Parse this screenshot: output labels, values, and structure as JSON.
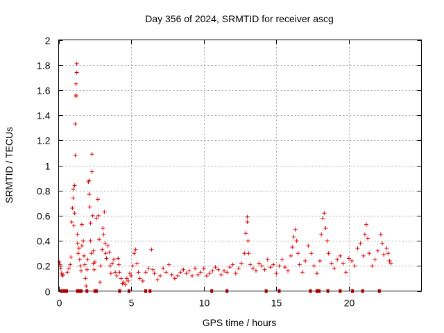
{
  "chart_data": {
    "type": "scatter",
    "title": "Day 356 of 2024, SRMTID for receiver ascg",
    "xlabel": "GPS time / hours",
    "ylabel": "SRMTID / TECUs",
    "xlim": [
      0,
      25
    ],
    "ylim": [
      0,
      2
    ],
    "x_ticks": [
      0,
      5,
      10,
      15,
      20
    ],
    "x_tick_labels": [
      "0",
      "5",
      "10",
      "15",
      "20"
    ],
    "y_ticks": [
      0,
      0.2,
      0.4,
      0.6,
      0.8,
      1,
      1.2,
      1.4,
      1.6,
      1.8,
      2
    ],
    "y_tick_labels": [
      "0",
      "0.2",
      "0.4",
      "0.6",
      "0.8",
      "1",
      "1.2",
      "1.4",
      "1.6",
      "1.8",
      "2"
    ],
    "grid": true,
    "marker": "plus",
    "color": "#e00000",
    "series": [
      {
        "name": "SRMTID",
        "points": [
          [
            0.05,
            0.23
          ],
          [
            0.1,
            0.21
          ],
          [
            0.15,
            0.18
          ],
          [
            0.2,
            0.14
          ],
          [
            0.25,
            0.12
          ],
          [
            0.3,
            0.13
          ],
          [
            0.6,
            0.15
          ],
          [
            0.7,
            0.18
          ],
          [
            0.8,
            0.21
          ],
          [
            0.85,
            0.27
          ],
          [
            0.9,
            0.55
          ],
          [
            0.95,
            0.66
          ],
          [
            1.0,
            0.74
          ],
          [
            1.0,
            0.81
          ],
          [
            1.05,
            0.52
          ],
          [
            1.1,
            0.62
          ],
          [
            1.1,
            0.84
          ],
          [
            1.15,
            1.08
          ],
          [
            1.15,
            1.33
          ],
          [
            1.2,
            1.55
          ],
          [
            1.2,
            1.56
          ],
          [
            1.2,
            1.65
          ],
          [
            1.25,
            1.74
          ],
          [
            1.25,
            1.81
          ],
          [
            1.3,
            0.45
          ],
          [
            1.3,
            0.38
          ],
          [
            1.35,
            0.3
          ],
          [
            1.4,
            0.34
          ],
          [
            1.45,
            0.25
          ],
          [
            1.5,
            0.2
          ],
          [
            1.55,
            0.16
          ],
          [
            1.6,
            0.36
          ],
          [
            1.6,
            0.53
          ],
          [
            1.7,
            0.4
          ],
          [
            1.75,
            0.28
          ],
          [
            1.8,
            0.21
          ],
          [
            1.85,
            0.1
          ],
          [
            1.9,
            0.04
          ],
          [
            1.95,
            0.17
          ],
          [
            2.0,
            0.25
          ],
          [
            2.05,
            0.87
          ],
          [
            2.1,
            0.88
          ],
          [
            2.1,
            0.77
          ],
          [
            2.15,
            0.67
          ],
          [
            2.2,
            0.54
          ],
          [
            2.2,
            0.4
          ],
          [
            2.25,
            0.3
          ],
          [
            2.3,
            0.95
          ],
          [
            2.3,
            1.09
          ],
          [
            2.35,
            0.6
          ],
          [
            2.4,
            0.32
          ],
          [
            2.4,
            0.22
          ],
          [
            2.45,
            0.17
          ],
          [
            2.5,
            0.23
          ],
          [
            2.6,
            0.58
          ],
          [
            2.7,
            0.73
          ],
          [
            2.75,
            0.6
          ],
          [
            2.8,
            0.41
          ],
          [
            2.85,
            0.07
          ],
          [
            2.9,
            0.2
          ],
          [
            3.0,
            0.33
          ],
          [
            3.05,
            0.5
          ],
          [
            3.1,
            0.45
          ],
          [
            3.15,
            0.63
          ],
          [
            3.2,
            0.38
          ],
          [
            3.25,
            0.3
          ],
          [
            3.3,
            0.26
          ],
          [
            3.4,
            0.36
          ],
          [
            3.5,
            0.31
          ],
          [
            3.55,
            0.2
          ],
          [
            3.6,
            0.14
          ],
          [
            3.7,
            0.22
          ],
          [
            3.8,
            0.25
          ],
          [
            3.9,
            0.15
          ],
          [
            4.0,
            0.12
          ],
          [
            4.1,
            0.26
          ],
          [
            4.15,
            0.21
          ],
          [
            4.2,
            0.15
          ],
          [
            4.3,
            0.1
          ],
          [
            4.4,
            0.06
          ],
          [
            4.5,
            0.07
          ],
          [
            4.6,
            0.05
          ],
          [
            4.7,
            0.1
          ],
          [
            4.8,
            0.08
          ],
          [
            4.9,
            0.14
          ],
          [
            5.0,
            0.12
          ],
          [
            5.1,
            0.2
          ],
          [
            5.2,
            0.3
          ],
          [
            5.3,
            0.33
          ],
          [
            5.4,
            0.22
          ],
          [
            5.5,
            0.15
          ],
          [
            5.6,
            0.1
          ],
          [
            5.8,
            0.08
          ],
          [
            6.0,
            0.15
          ],
          [
            6.2,
            0.18
          ],
          [
            6.4,
            0.33
          ],
          [
            6.5,
            0.17
          ],
          [
            6.6,
            0.14
          ],
          [
            6.8,
            0.09
          ],
          [
            7.0,
            0.12
          ],
          [
            7.2,
            0.18
          ],
          [
            7.4,
            0.15
          ],
          [
            7.6,
            0.21
          ],
          [
            7.8,
            0.13
          ],
          [
            8.0,
            0.1
          ],
          [
            8.2,
            0.12
          ],
          [
            8.4,
            0.15
          ],
          [
            8.6,
            0.17
          ],
          [
            8.8,
            0.14
          ],
          [
            9.0,
            0.16
          ],
          [
            9.2,
            0.12
          ],
          [
            9.4,
            0.18
          ],
          [
            9.6,
            0.13
          ],
          [
            9.8,
            0.15
          ],
          [
            10.0,
            0.18
          ],
          [
            10.2,
            0.12
          ],
          [
            10.4,
            0.14
          ],
          [
            10.6,
            0.16
          ],
          [
            10.8,
            0.19
          ],
          [
            11.0,
            0.17
          ],
          [
            11.2,
            0.13
          ],
          [
            11.4,
            0.16
          ],
          [
            11.6,
            0.15
          ],
          [
            11.8,
            0.19
          ],
          [
            12.0,
            0.21
          ],
          [
            12.2,
            0.14
          ],
          [
            12.4,
            0.18
          ],
          [
            12.6,
            0.22
          ],
          [
            12.8,
            0.3
          ],
          [
            12.9,
            0.46
          ],
          [
            13.0,
            0.55
          ],
          [
            13.0,
            0.59
          ],
          [
            13.05,
            0.4
          ],
          [
            13.1,
            0.3
          ],
          [
            13.2,
            0.21
          ],
          [
            13.4,
            0.18
          ],
          [
            13.6,
            0.16
          ],
          [
            13.8,
            0.22
          ],
          [
            14.0,
            0.2
          ],
          [
            14.2,
            0.17
          ],
          [
            14.4,
            0.25
          ],
          [
            14.6,
            0.19
          ],
          [
            14.8,
            0.21
          ],
          [
            15.0,
            0.14
          ],
          [
            15.2,
            0.2
          ],
          [
            15.4,
            0.25
          ],
          [
            15.6,
            0.19
          ],
          [
            15.8,
            0.16
          ],
          [
            16.0,
            0.28
          ],
          [
            16.1,
            0.35
          ],
          [
            16.2,
            0.43
          ],
          [
            16.3,
            0.49
          ],
          [
            16.4,
            0.4
          ],
          [
            16.5,
            0.3
          ],
          [
            16.6,
            0.21
          ],
          [
            16.8,
            0.15
          ],
          [
            17.0,
            0.24
          ],
          [
            17.2,
            0.36
          ],
          [
            17.4,
            0.3
          ],
          [
            17.6,
            0.2
          ],
          [
            17.8,
            0.14
          ],
          [
            18.0,
            0.24
          ],
          [
            18.1,
            0.45
          ],
          [
            18.2,
            0.58
          ],
          [
            18.3,
            0.62
          ],
          [
            18.4,
            0.5
          ],
          [
            18.5,
            0.4
          ],
          [
            18.6,
            0.3
          ],
          [
            18.8,
            0.22
          ],
          [
            19.0,
            0.18
          ],
          [
            19.2,
            0.25
          ],
          [
            19.4,
            0.28
          ],
          [
            19.6,
            0.22
          ],
          [
            19.8,
            0.15
          ],
          [
            20.0,
            0.26
          ],
          [
            20.2,
            0.24
          ],
          [
            20.4,
            0.2
          ],
          [
            20.6,
            0.34
          ],
          [
            20.8,
            0.38
          ],
          [
            21.0,
            0.28
          ],
          [
            21.1,
            0.45
          ],
          [
            21.2,
            0.53
          ],
          [
            21.3,
            0.42
          ],
          [
            21.4,
            0.3
          ],
          [
            21.6,
            0.2
          ],
          [
            21.8,
            0.25
          ],
          [
            22.0,
            0.32
          ],
          [
            22.2,
            0.45
          ],
          [
            22.3,
            0.38
          ],
          [
            22.4,
            0.29
          ],
          [
            22.6,
            0.34
          ],
          [
            22.7,
            0.3
          ],
          [
            22.8,
            0.24
          ],
          [
            22.9,
            0.22
          ]
        ]
      }
    ],
    "zero_points_x": [
      0.2,
      0.4,
      0.55,
      1.3,
      1.45,
      1.55,
      1.95,
      2.5,
      2.6,
      4.2,
      4.85,
      6.0,
      6.3,
      10.55,
      11.6,
      14.3,
      15.2,
      17.35,
      17.8,
      17.95,
      18.55,
      19.4,
      20.25,
      20.95,
      22.1
    ]
  }
}
